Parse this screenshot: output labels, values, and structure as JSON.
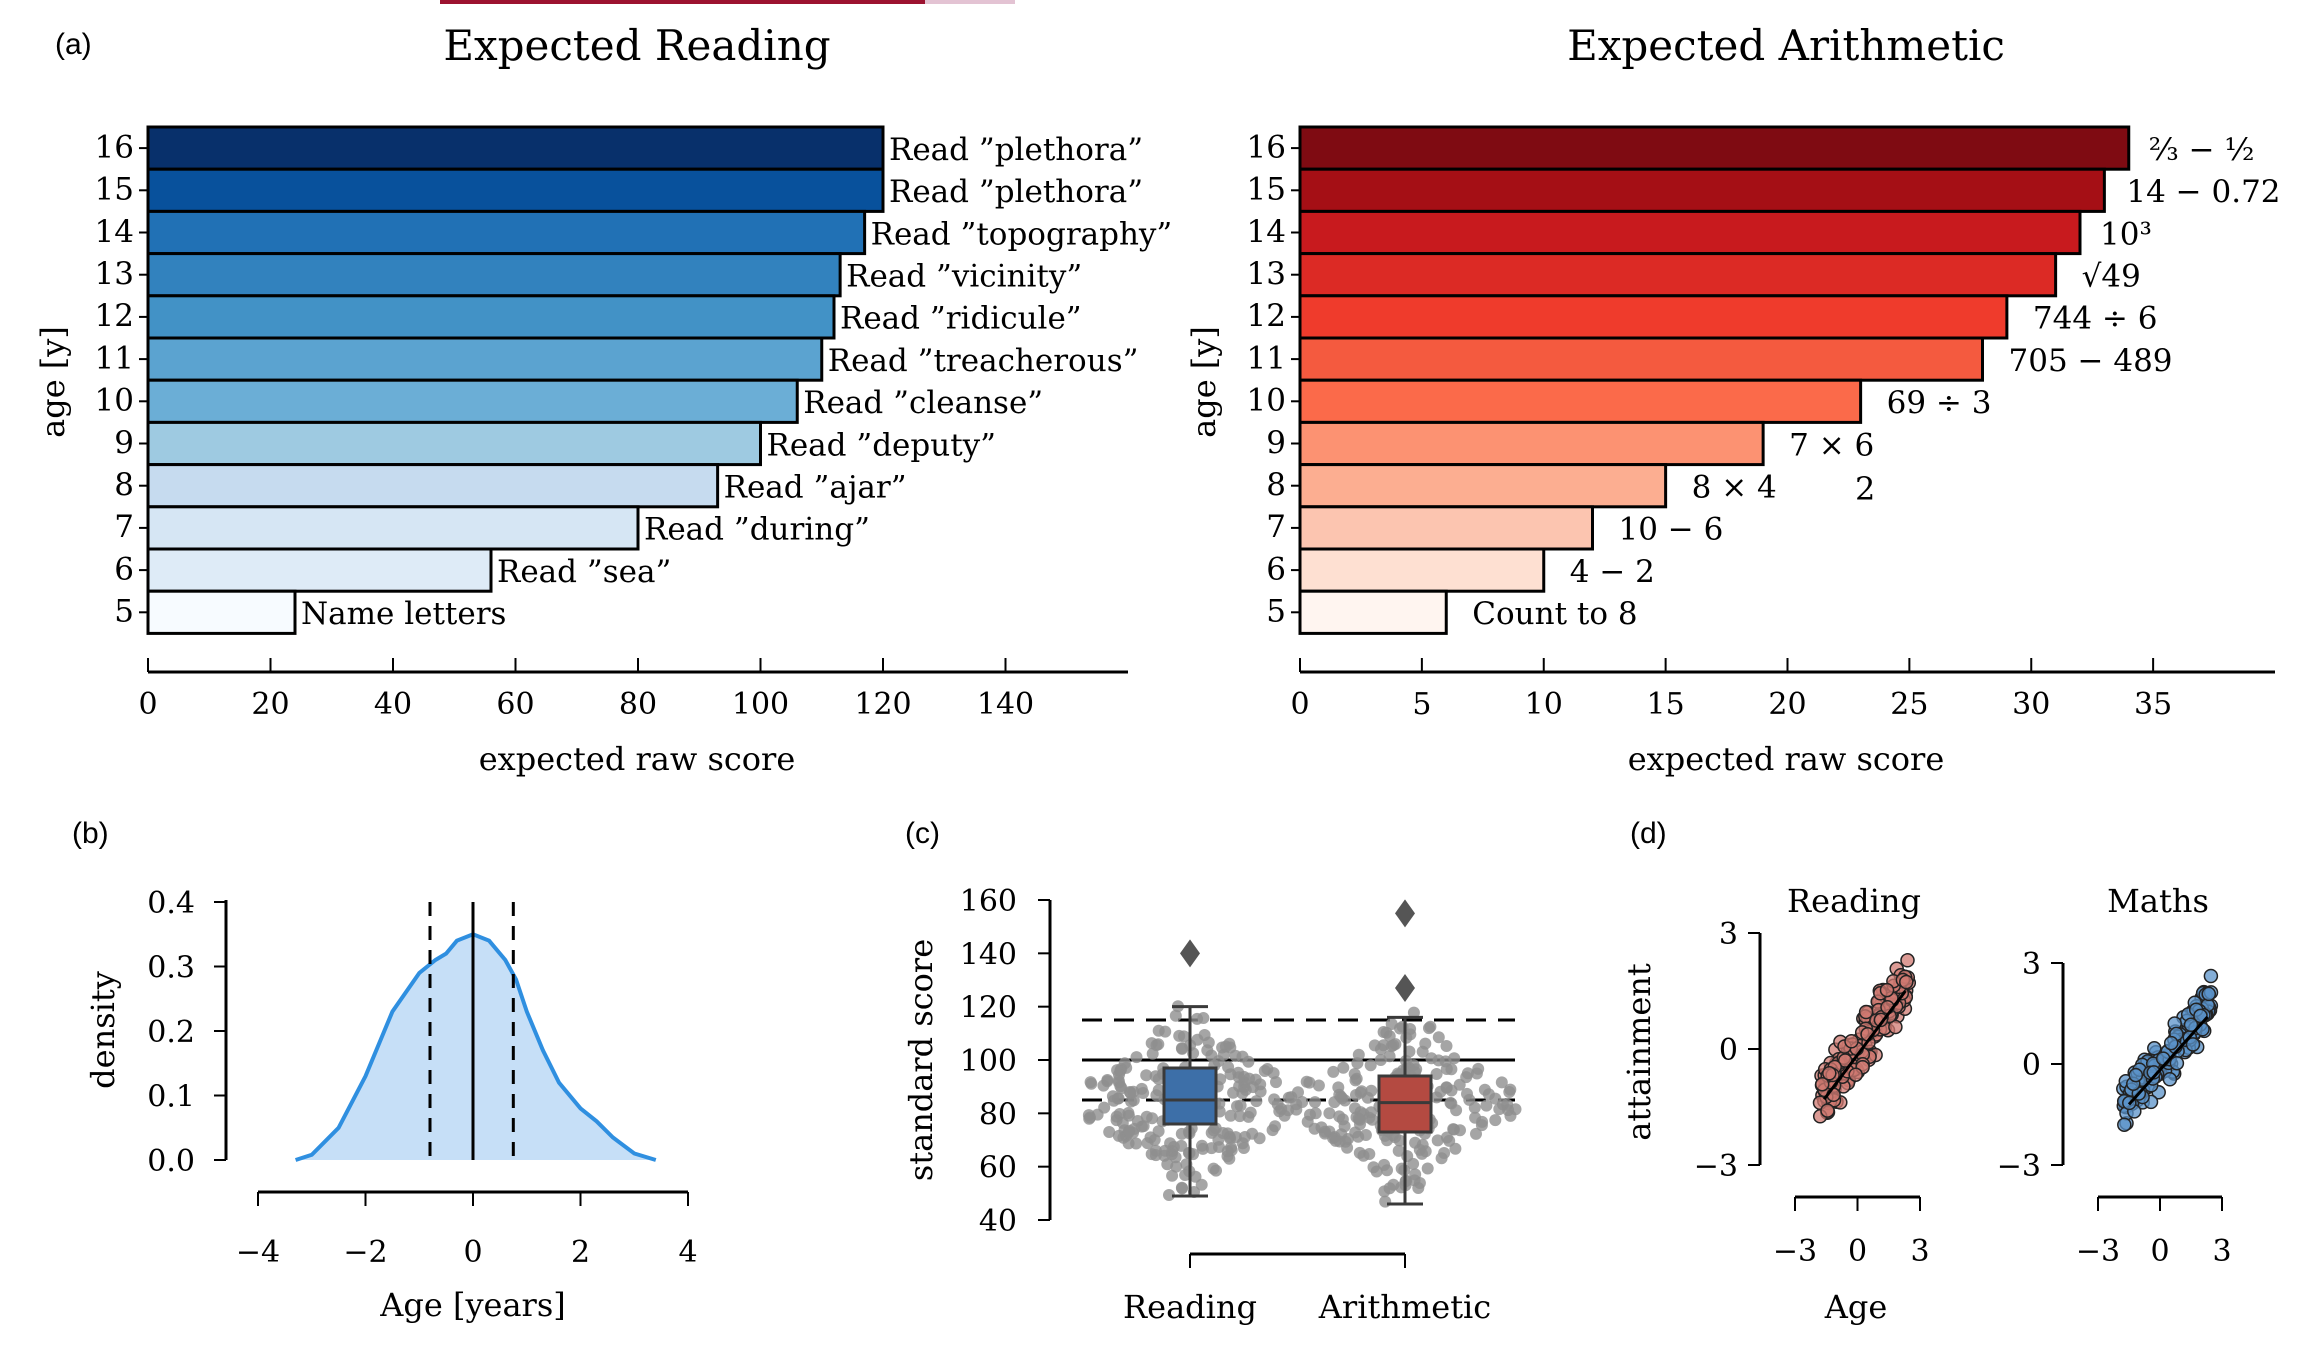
{
  "panel_labels": {
    "a": "(a)",
    "b": "(b)",
    "c": "(c)",
    "d": "(d)"
  },
  "chart_data": [
    {
      "id": "expected-reading",
      "type": "bar",
      "orientation": "horizontal",
      "title": "Expected Reading",
      "xlabel": "expected raw score",
      "ylabel": "age [y]",
      "xlim": [
        0,
        160
      ],
      "xticks": [
        0,
        20,
        40,
        60,
        80,
        100,
        120,
        140
      ],
      "categories": [
        "16",
        "15",
        "14",
        "13",
        "12",
        "11",
        "10",
        "9",
        "8",
        "7",
        "6",
        "5"
      ],
      "values": [
        120,
        120,
        117,
        113,
        112,
        110,
        106,
        100,
        93,
        80,
        56,
        24
      ],
      "bar_labels": [
        "Read ”plethora”",
        "Read ”plethora”",
        "Read ”topography”",
        "Read ”vicinity”",
        "Read ”ridicule”",
        "Read ”treacherous”",
        "Read ”cleanse”",
        "Read ”deputy”",
        "Read ”ajar”",
        "Read ”during”",
        "Read ”sea”",
        "Name letters"
      ],
      "colors": [
        "#08306b",
        "#08519c",
        "#2171b5",
        "#3282be",
        "#4292c6",
        "#5ba3d0",
        "#6baed6",
        "#9ecae1",
        "#c6dbef",
        "#d6e6f4",
        "#deebf7",
        "#f7fbff"
      ],
      "legend": "none",
      "grid": false
    },
    {
      "id": "expected-arithmetic",
      "type": "bar",
      "orientation": "horizontal",
      "title": "Expected Arithmetic",
      "xlabel": "expected raw score",
      "ylabel": "age [y]",
      "xlim": [
        0,
        40
      ],
      "xticks": [
        0,
        5,
        10,
        15,
        20,
        25,
        30,
        35
      ],
      "categories": [
        "16",
        "15",
        "14",
        "13",
        "12",
        "11",
        "10",
        "9",
        "8",
        "7",
        "6",
        "5"
      ],
      "values": [
        34,
        33,
        32,
        31,
        29,
        28,
        23,
        19,
        15,
        12,
        10,
        6
      ],
      "bar_labels": [
        "⅔ − ½",
        "14 − 0.72",
        "10³",
        "√49",
        "744 ÷ 6",
        "705 − 489",
        "69 ÷ 3",
        "7 × 6",
        "8 × 4",
        "10 − 6",
        "4 − 2",
        "Count to 8"
      ],
      "extra_annotation": "2",
      "colors": [
        "#7f0b12",
        "#a50f15",
        "#c81a1e",
        "#dc2a25",
        "#ef3b2c",
        "#f45a3f",
        "#fb6a4a",
        "#fc9272",
        "#fcae91",
        "#fcc5b0",
        "#fee0d2",
        "#fff5f0"
      ],
      "legend": "none",
      "grid": false
    },
    {
      "id": "age-density",
      "type": "area",
      "xlabel": "Age [years]",
      "ylabel": "density",
      "xlim": [
        -4,
        4
      ],
      "ylim": [
        0,
        0.4
      ],
      "xticks": [
        -4,
        -2,
        0,
        2,
        4
      ],
      "yticks": [
        0.0,
        0.1,
        0.2,
        0.3,
        0.4
      ],
      "ytick_labels": [
        "0.0",
        "0.1",
        "0.2",
        "0.3",
        "0.4"
      ],
      "x": [
        -3.3,
        -3.0,
        -2.5,
        -2.0,
        -1.5,
        -1.0,
        -0.7,
        -0.5,
        -0.3,
        0.0,
        0.3,
        0.6,
        0.8,
        1.0,
        1.3,
        1.6,
        2.0,
        2.3,
        2.6,
        3.0,
        3.4
      ],
      "y": [
        0.0,
        0.008,
        0.05,
        0.13,
        0.23,
        0.29,
        0.31,
        0.32,
        0.34,
        0.35,
        0.34,
        0.31,
        0.28,
        0.23,
        0.17,
        0.12,
        0.08,
        0.06,
        0.035,
        0.01,
        0.0
      ],
      "vlines_solid": [
        0
      ],
      "vlines_dashed": [
        -0.8,
        0.75
      ],
      "fill_color": "#c6dff7",
      "line_color": "#2f8fe0",
      "legend": "none",
      "grid": false
    },
    {
      "id": "standard-scores",
      "type": "scatter",
      "subtype": "box-and-swarm",
      "ylabel": "standard score",
      "ylim": [
        40,
        160
      ],
      "yticks": [
        40,
        60,
        80,
        100,
        120,
        140,
        160
      ],
      "categories": [
        "Reading",
        "Arithmetic"
      ],
      "box_colors": [
        "#3d6fa8",
        "#b44a41"
      ],
      "boxes": [
        {
          "name": "Reading",
          "whisker_low": 49,
          "q1": 76,
          "median": 85,
          "q3": 97,
          "whisker_high": 120,
          "outliers": [
            140
          ]
        },
        {
          "name": "Arithmetic",
          "whisker_low": 46,
          "q1": 73,
          "median": 84,
          "q3": 94,
          "whisker_high": 116,
          "outliers": [
            127,
            155
          ]
        }
      ],
      "hlines_solid": [
        100
      ],
      "hlines_dashed": [
        85,
        115
      ],
      "legend": "none",
      "grid": false
    },
    {
      "id": "attainment-reading",
      "type": "scatter",
      "title": "Reading",
      "xlabel": "Age",
      "ylabel": "attainment",
      "xlim": [
        -3,
        3
      ],
      "ylim": [
        -3,
        3
      ],
      "xticks": [
        -3,
        0,
        3
      ],
      "yticks": [
        -3,
        0,
        3
      ],
      "xtick_labels": [
        "−3",
        "0",
        "3"
      ],
      "ytick_labels": [
        "−3",
        "0",
        "3"
      ],
      "fit_line": {
        "x": [
          -1.6,
          2.3
        ],
        "y": [
          -1.3,
          1.5
        ]
      },
      "point_color": "#d07a72",
      "n_points": 170,
      "cloud": {
        "x_range": [
          -1.8,
          2.5
        ],
        "slope": 0.72,
        "spread": 0.55
      },
      "legend": "none",
      "grid": false
    },
    {
      "id": "attainment-maths",
      "type": "scatter",
      "title": "Maths",
      "xlabel": "",
      "ylabel": "",
      "xlim": [
        -3,
        3
      ],
      "ylim": [
        -3,
        3
      ],
      "xticks": [
        -3,
        0,
        3
      ],
      "yticks": [
        -3,
        0,
        3
      ],
      "xtick_labels": [
        "−3",
        "0",
        "3"
      ],
      "ytick_labels": [
        "−3",
        "0",
        "3"
      ],
      "fit_line": {
        "x": [
          -1.5,
          2.3
        ],
        "y": [
          -1.2,
          1.4
        ]
      },
      "point_color": "#5b93c9",
      "n_points": 170,
      "cloud": {
        "x_range": [
          -1.8,
          2.5
        ],
        "slope": 0.72,
        "spread": 0.55
      },
      "legend": "none",
      "grid": false
    }
  ]
}
